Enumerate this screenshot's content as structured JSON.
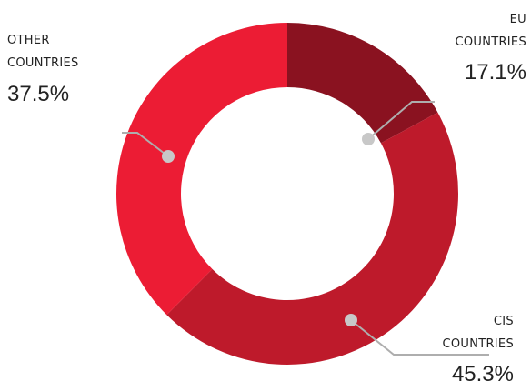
{
  "chart_data": {
    "type": "pie",
    "variant": "donut",
    "title": "",
    "categories": [
      "EU COUNTRIES",
      "CIS COUNTRIES",
      "OTHER COUNTRIES"
    ],
    "values": [
      17.1,
      45.3,
      37.5
    ],
    "value_labels": [
      "17.1%",
      "45.3%",
      "37.5%"
    ],
    "slices": [
      {
        "name_lines": [
          "EU",
          "COUNTRIES"
        ],
        "value": 17.1,
        "value_label": "17.1%",
        "color": "#8a1220"
      },
      {
        "name_lines": [
          "CIS",
          "COUNTRIES"
        ],
        "value": 45.3,
        "value_label": "45.3%",
        "color": "#be1a2b"
      },
      {
        "name_lines": [
          "OTHER",
          "COUNTRIES"
        ],
        "value": 37.5,
        "value_label": "37.5%",
        "color": "#ec1c34"
      }
    ],
    "start_angle": "12 o'clock",
    "direction": "clockwise",
    "legend": "none"
  }
}
